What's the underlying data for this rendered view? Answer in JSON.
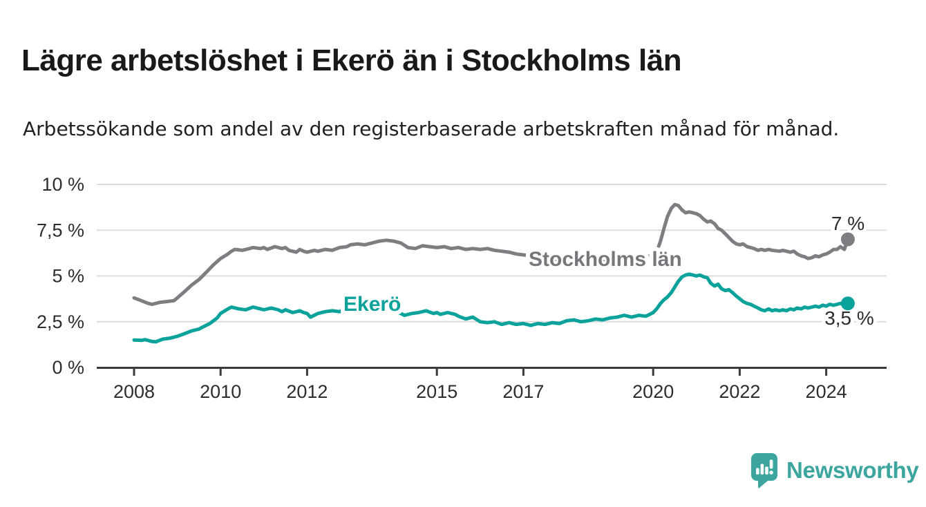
{
  "page": {
    "title": "Lägre arbetslöshet i Ekerö än i Stockholms län",
    "subtitle": "Arbetssökande som andel av den registerbaserade arbetskraften månad för månad."
  },
  "branding": {
    "logo_text": "Newsworthy",
    "logo_color": "#3ca69e",
    "logo_icon": "bar-chart-speech-bubble-icon"
  },
  "chart_data": {
    "type": "line",
    "title": "Lägre arbetslöshet i Ekerö än i Stockholms län",
    "subtitle": "Arbetssökande som andel av den registerbaserade arbetskraften månad för månad.",
    "grid": true,
    "legend_position": "inline-labels",
    "x_axis": {
      "values": [
        2008,
        2010,
        2012,
        2015,
        2017,
        2020,
        2022,
        2024
      ],
      "labels": [
        "2008",
        "2010",
        "2012",
        "2015",
        "2017",
        "2020",
        "2022",
        "2024"
      ],
      "range": [
        2008,
        2024.6
      ]
    },
    "y_axis": {
      "values": [
        0,
        2.5,
        5,
        7.5,
        10
      ],
      "labels": [
        "0 %",
        "2,5 %",
        "5 %",
        "7,5 %",
        "10 %"
      ],
      "range": [
        0,
        10.5
      ]
    },
    "series": [
      {
        "name": "Stockholms län",
        "color": "#7d7d82",
        "label_color": "#76767b",
        "end_label": "7 %",
        "end_value": 7.0,
        "points": [
          [
            2008.0,
            3.8
          ],
          [
            2008.17,
            3.65
          ],
          [
            2008.33,
            3.5
          ],
          [
            2008.42,
            3.45
          ],
          [
            2008.58,
            3.55
          ],
          [
            2008.75,
            3.6
          ],
          [
            2008.92,
            3.65
          ],
          [
            2009.0,
            3.8
          ],
          [
            2009.17,
            4.15
          ],
          [
            2009.33,
            4.5
          ],
          [
            2009.5,
            4.8
          ],
          [
            2009.67,
            5.2
          ],
          [
            2009.83,
            5.6
          ],
          [
            2010.0,
            5.95
          ],
          [
            2010.17,
            6.2
          ],
          [
            2010.25,
            6.35
          ],
          [
            2010.33,
            6.45
          ],
          [
            2010.5,
            6.4
          ],
          [
            2010.67,
            6.5
          ],
          [
            2010.75,
            6.55
          ],
          [
            2010.92,
            6.5
          ],
          [
            2011.0,
            6.55
          ],
          [
            2011.08,
            6.45
          ],
          [
            2011.25,
            6.6
          ],
          [
            2011.42,
            6.5
          ],
          [
            2011.5,
            6.55
          ],
          [
            2011.58,
            6.4
          ],
          [
            2011.75,
            6.3
          ],
          [
            2011.83,
            6.45
          ],
          [
            2011.92,
            6.35
          ],
          [
            2012.0,
            6.3
          ],
          [
            2012.17,
            6.4
          ],
          [
            2012.25,
            6.35
          ],
          [
            2012.42,
            6.45
          ],
          [
            2012.58,
            6.4
          ],
          [
            2012.75,
            6.55
          ],
          [
            2012.92,
            6.6
          ],
          [
            2013.0,
            6.7
          ],
          [
            2013.17,
            6.75
          ],
          [
            2013.33,
            6.7
          ],
          [
            2013.5,
            6.8
          ],
          [
            2013.67,
            6.9
          ],
          [
            2013.83,
            6.95
          ],
          [
            2014.0,
            6.9
          ],
          [
            2014.17,
            6.8
          ],
          [
            2014.33,
            6.55
          ],
          [
            2014.5,
            6.5
          ],
          [
            2014.67,
            6.65
          ],
          [
            2014.83,
            6.6
          ],
          [
            2015.0,
            6.55
          ],
          [
            2015.17,
            6.6
          ],
          [
            2015.33,
            6.5
          ],
          [
            2015.5,
            6.55
          ],
          [
            2015.67,
            6.45
          ],
          [
            2015.83,
            6.5
          ],
          [
            2016.0,
            6.45
          ],
          [
            2016.17,
            6.5
          ],
          [
            2016.33,
            6.4
          ],
          [
            2016.5,
            6.35
          ],
          [
            2016.67,
            6.3
          ],
          [
            2016.83,
            6.2
          ],
          [
            2017.0,
            6.15
          ],
          [
            2017.17,
            6.1
          ],
          [
            2017.33,
            6.05
          ],
          [
            2017.5,
            6.0
          ],
          [
            2017.67,
            5.95
          ],
          [
            2017.83,
            5.9
          ],
          [
            2018.0,
            5.9
          ],
          [
            2018.25,
            5.85
          ],
          [
            2018.5,
            5.8
          ],
          [
            2018.75,
            5.85
          ],
          [
            2019.0,
            5.9
          ],
          [
            2019.25,
            5.95
          ],
          [
            2019.5,
            6.0
          ],
          [
            2019.75,
            6.05
          ],
          [
            2020.0,
            6.1
          ],
          [
            2020.08,
            6.3
          ],
          [
            2020.17,
            6.9
          ],
          [
            2020.25,
            7.6
          ],
          [
            2020.33,
            8.25
          ],
          [
            2020.42,
            8.7
          ],
          [
            2020.5,
            8.9
          ],
          [
            2020.58,
            8.85
          ],
          [
            2020.67,
            8.6
          ],
          [
            2020.75,
            8.45
          ],
          [
            2020.83,
            8.5
          ],
          [
            2020.92,
            8.45
          ],
          [
            2021.0,
            8.4
          ],
          [
            2021.08,
            8.3
          ],
          [
            2021.17,
            8.1
          ],
          [
            2021.25,
            7.95
          ],
          [
            2021.33,
            8.0
          ],
          [
            2021.42,
            7.85
          ],
          [
            2021.5,
            7.6
          ],
          [
            2021.58,
            7.5
          ],
          [
            2021.67,
            7.3
          ],
          [
            2021.75,
            7.1
          ],
          [
            2021.83,
            6.9
          ],
          [
            2021.92,
            6.75
          ],
          [
            2022.0,
            6.7
          ],
          [
            2022.08,
            6.75
          ],
          [
            2022.17,
            6.6
          ],
          [
            2022.25,
            6.55
          ],
          [
            2022.33,
            6.5
          ],
          [
            2022.42,
            6.4
          ],
          [
            2022.5,
            6.45
          ],
          [
            2022.58,
            6.4
          ],
          [
            2022.67,
            6.45
          ],
          [
            2022.75,
            6.4
          ],
          [
            2022.92,
            6.35
          ],
          [
            2023.0,
            6.4
          ],
          [
            2023.08,
            6.35
          ],
          [
            2023.17,
            6.3
          ],
          [
            2023.25,
            6.35
          ],
          [
            2023.33,
            6.2
          ],
          [
            2023.42,
            6.1
          ],
          [
            2023.5,
            6.05
          ],
          [
            2023.58,
            5.95
          ],
          [
            2023.67,
            6.0
          ],
          [
            2023.75,
            6.1
          ],
          [
            2023.83,
            6.05
          ],
          [
            2023.92,
            6.15
          ],
          [
            2024.0,
            6.2
          ],
          [
            2024.08,
            6.3
          ],
          [
            2024.17,
            6.45
          ],
          [
            2024.25,
            6.45
          ],
          [
            2024.33,
            6.6
          ],
          [
            2024.42,
            6.45
          ],
          [
            2024.5,
            7.0
          ]
        ]
      },
      {
        "name": "Ekerö",
        "color": "#0aa29a",
        "label_color": "#0aa29a",
        "end_label": "3,5 %",
        "end_value": 3.5,
        "points": [
          [
            2008.0,
            1.5
          ],
          [
            2008.17,
            1.48
          ],
          [
            2008.25,
            1.52
          ],
          [
            2008.42,
            1.42
          ],
          [
            2008.5,
            1.4
          ],
          [
            2008.67,
            1.55
          ],
          [
            2008.83,
            1.6
          ],
          [
            2009.0,
            1.7
          ],
          [
            2009.17,
            1.85
          ],
          [
            2009.33,
            2.0
          ],
          [
            2009.5,
            2.1
          ],
          [
            2009.58,
            2.2
          ],
          [
            2009.75,
            2.4
          ],
          [
            2009.92,
            2.7
          ],
          [
            2010.0,
            2.95
          ],
          [
            2010.17,
            3.2
          ],
          [
            2010.25,
            3.3
          ],
          [
            2010.42,
            3.2
          ],
          [
            2010.58,
            3.15
          ],
          [
            2010.75,
            3.3
          ],
          [
            2010.92,
            3.2
          ],
          [
            2011.0,
            3.15
          ],
          [
            2011.17,
            3.25
          ],
          [
            2011.33,
            3.15
          ],
          [
            2011.42,
            3.05
          ],
          [
            2011.5,
            3.15
          ],
          [
            2011.67,
            3.0
          ],
          [
            2011.83,
            3.1
          ],
          [
            2011.92,
            3.0
          ],
          [
            2012.0,
            2.95
          ],
          [
            2012.08,
            2.75
          ],
          [
            2012.25,
            2.95
          ],
          [
            2012.42,
            3.05
          ],
          [
            2012.58,
            3.1
          ],
          [
            2012.75,
            3.05
          ],
          [
            2012.92,
            3.3
          ],
          [
            2013.0,
            3.35
          ],
          [
            2013.25,
            3.3
          ],
          [
            2013.5,
            3.35
          ],
          [
            2013.75,
            3.25
          ],
          [
            2014.0,
            3.05
          ],
          [
            2014.17,
            2.95
          ],
          [
            2014.25,
            2.85
          ],
          [
            2014.42,
            2.95
          ],
          [
            2014.58,
            3.0
          ],
          [
            2014.75,
            3.1
          ],
          [
            2014.92,
            2.95
          ],
          [
            2015.0,
            3.0
          ],
          [
            2015.08,
            2.9
          ],
          [
            2015.25,
            3.0
          ],
          [
            2015.42,
            2.9
          ],
          [
            2015.5,
            2.8
          ],
          [
            2015.67,
            2.65
          ],
          [
            2015.83,
            2.75
          ],
          [
            2016.0,
            2.5
          ],
          [
            2016.17,
            2.45
          ],
          [
            2016.33,
            2.5
          ],
          [
            2016.5,
            2.35
          ],
          [
            2016.67,
            2.45
          ],
          [
            2016.83,
            2.35
          ],
          [
            2017.0,
            2.4
          ],
          [
            2017.17,
            2.3
          ],
          [
            2017.33,
            2.4
          ],
          [
            2017.5,
            2.35
          ],
          [
            2017.67,
            2.45
          ],
          [
            2017.83,
            2.4
          ],
          [
            2018.0,
            2.55
          ],
          [
            2018.17,
            2.6
          ],
          [
            2018.33,
            2.5
          ],
          [
            2018.5,
            2.55
          ],
          [
            2018.67,
            2.65
          ],
          [
            2018.83,
            2.6
          ],
          [
            2019.0,
            2.7
          ],
          [
            2019.17,
            2.75
          ],
          [
            2019.33,
            2.85
          ],
          [
            2019.5,
            2.75
          ],
          [
            2019.67,
            2.85
          ],
          [
            2019.83,
            2.8
          ],
          [
            2019.92,
            2.9
          ],
          [
            2020.0,
            3.0
          ],
          [
            2020.08,
            3.2
          ],
          [
            2020.17,
            3.5
          ],
          [
            2020.25,
            3.7
          ],
          [
            2020.33,
            3.85
          ],
          [
            2020.42,
            4.1
          ],
          [
            2020.5,
            4.4
          ],
          [
            2020.58,
            4.7
          ],
          [
            2020.67,
            4.95
          ],
          [
            2020.75,
            5.05
          ],
          [
            2020.83,
            5.1
          ],
          [
            2020.92,
            5.05
          ],
          [
            2021.0,
            5.0
          ],
          [
            2021.08,
            5.05
          ],
          [
            2021.17,
            4.95
          ],
          [
            2021.25,
            4.9
          ],
          [
            2021.33,
            4.6
          ],
          [
            2021.42,
            4.45
          ],
          [
            2021.5,
            4.55
          ],
          [
            2021.58,
            4.3
          ],
          [
            2021.67,
            4.2
          ],
          [
            2021.75,
            4.25
          ],
          [
            2021.83,
            4.1
          ],
          [
            2021.92,
            3.9
          ],
          [
            2022.0,
            3.75
          ],
          [
            2022.08,
            3.6
          ],
          [
            2022.17,
            3.5
          ],
          [
            2022.25,
            3.45
          ],
          [
            2022.33,
            3.35
          ],
          [
            2022.42,
            3.25
          ],
          [
            2022.5,
            3.15
          ],
          [
            2022.58,
            3.1
          ],
          [
            2022.67,
            3.2
          ],
          [
            2022.75,
            3.1
          ],
          [
            2022.83,
            3.15
          ],
          [
            2022.92,
            3.1
          ],
          [
            2023.0,
            3.15
          ],
          [
            2023.08,
            3.1
          ],
          [
            2023.17,
            3.2
          ],
          [
            2023.25,
            3.15
          ],
          [
            2023.33,
            3.25
          ],
          [
            2023.42,
            3.2
          ],
          [
            2023.5,
            3.3
          ],
          [
            2023.58,
            3.25
          ],
          [
            2023.67,
            3.3
          ],
          [
            2023.75,
            3.35
          ],
          [
            2023.83,
            3.3
          ],
          [
            2023.92,
            3.4
          ],
          [
            2024.0,
            3.35
          ],
          [
            2024.08,
            3.45
          ],
          [
            2024.17,
            3.4
          ],
          [
            2024.25,
            3.45
          ],
          [
            2024.33,
            3.5
          ],
          [
            2024.42,
            3.45
          ],
          [
            2024.5,
            3.5
          ]
        ]
      }
    ]
  }
}
